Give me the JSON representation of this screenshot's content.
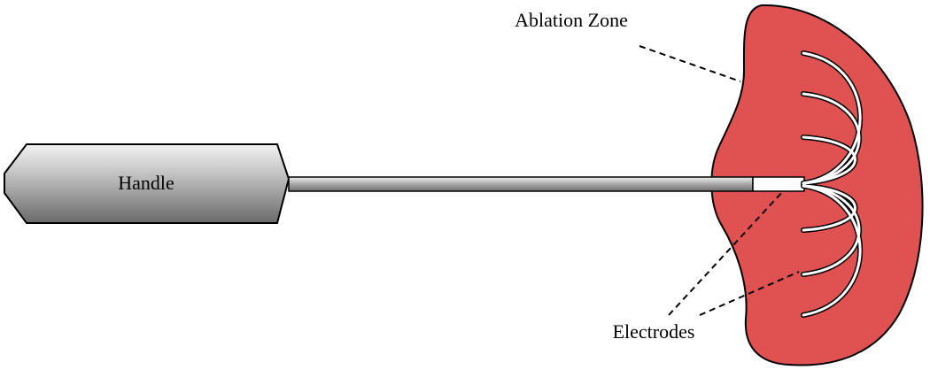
{
  "labels": {
    "handle": "Handle",
    "ablation_zone": "Ablation Zone",
    "electrodes": "Electrodes"
  },
  "colors": {
    "ablation_zone_fill": "#e05252",
    "outline": "#000000",
    "handle_gradient_light": "#f7f7f7",
    "handle_gradient_dark": "#6e6e6e",
    "electrode_wire": "#ffffff"
  }
}
